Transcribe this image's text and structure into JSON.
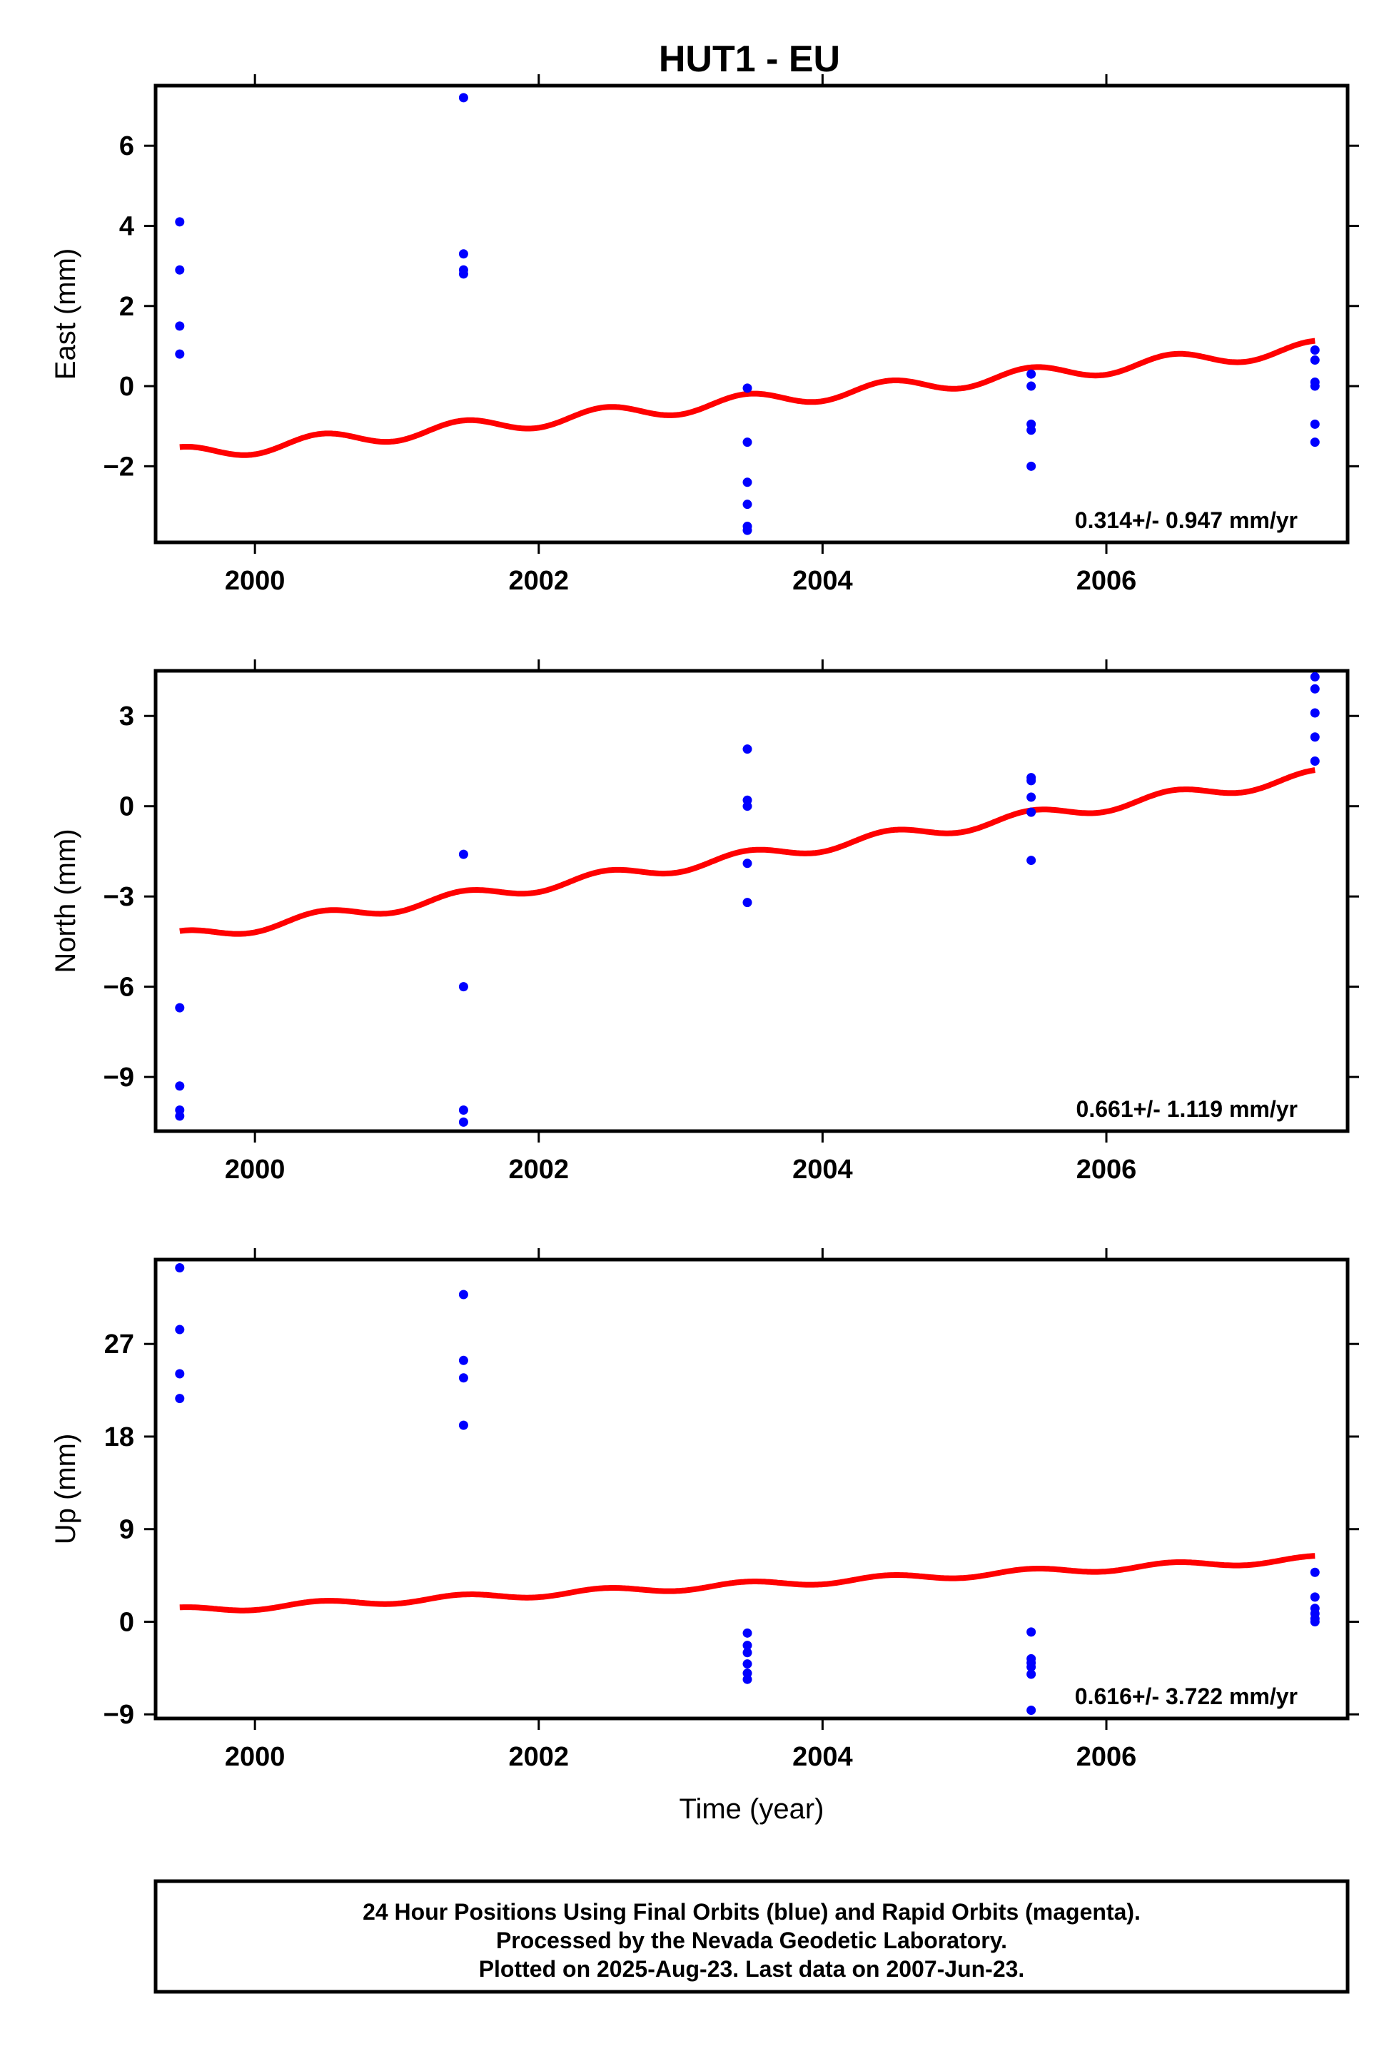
{
  "title": "HUT1 - EU",
  "colors": {
    "final_orbits": "#0000ff",
    "model": "#ff0000",
    "frame": "#000000",
    "background": "#ffffff"
  },
  "footer": {
    "line1": "24 Hour Positions Using Final Orbits (blue) and Rapid Orbits (magenta).",
    "line2": "Processed by the Nevada Geodetic Laboratory.",
    "line3": "Plotted on 2025-Aug-23. Last data on 2007-Jun-23."
  },
  "chart_data": [
    {
      "type": "scatter",
      "panel": "east",
      "ylabel": "East (mm)",
      "xlabel": "",
      "rate_label": "0.314+/- 0.947 mm/yr",
      "xlim": [
        1999.3,
        2007.7
      ],
      "ylim": [
        -3.9,
        7.5
      ],
      "xticks": [
        2000,
        2002,
        2004,
        2006
      ],
      "yticks": [
        -2,
        0,
        2,
        4,
        6
      ],
      "grid": false,
      "series": [
        {
          "marker": "dot",
          "points": [
            [
              1999.47,
              4.1
            ],
            [
              1999.47,
              2.9
            ],
            [
              1999.47,
              1.5
            ],
            [
              1999.47,
              0.8
            ],
            [
              2001.47,
              7.2
            ],
            [
              2001.47,
              3.3
            ],
            [
              2001.47,
              2.9
            ],
            [
              2001.47,
              2.8
            ],
            [
              2003.47,
              -0.05
            ],
            [
              2003.47,
              -1.4
            ],
            [
              2003.47,
              -2.4
            ],
            [
              2003.47,
              -2.95
            ],
            [
              2003.47,
              -3.5
            ],
            [
              2003.47,
              -3.6
            ],
            [
              2005.47,
              0.3
            ],
            [
              2005.47,
              0.0
            ],
            [
              2005.47,
              -0.95
            ],
            [
              2005.47,
              -1.1
            ],
            [
              2005.47,
              -2.0
            ],
            [
              2007.47,
              0.9
            ],
            [
              2007.47,
              0.65
            ],
            [
              2007.47,
              0.1
            ],
            [
              2007.47,
              0.0
            ],
            [
              2007.47,
              -0.95
            ],
            [
              2007.47,
              -1.4
            ]
          ]
        },
        {
          "line": "seasonal-model",
          "start": [
            1999.47,
            -1.7
          ],
          "end": [
            2007.47,
            0.95
          ],
          "amplitude": 0.18
        }
      ]
    },
    {
      "type": "scatter",
      "panel": "north",
      "ylabel": "North (mm)",
      "xlabel": "",
      "rate_label": "0.661+/- 1.119 mm/yr",
      "xlim": [
        1999.3,
        2007.7
      ],
      "ylim": [
        -10.8,
        4.5
      ],
      "xticks": [
        2000,
        2002,
        2004,
        2006
      ],
      "yticks": [
        -9,
        -6,
        -3,
        0,
        3
      ],
      "grid": false,
      "series": [
        {
          "marker": "dot",
          "points": [
            [
              1999.47,
              -6.7
            ],
            [
              1999.47,
              -9.3
            ],
            [
              1999.47,
              -10.1
            ],
            [
              1999.47,
              -10.3
            ],
            [
              2001.47,
              -1.6
            ],
            [
              2001.47,
              -6.0
            ],
            [
              2001.47,
              -10.1
            ],
            [
              2001.47,
              -10.5
            ],
            [
              2003.47,
              1.9
            ],
            [
              2003.47,
              0.2
            ],
            [
              2003.47,
              0.0
            ],
            [
              2003.47,
              -1.9
            ],
            [
              2003.47,
              -3.2
            ],
            [
              2005.47,
              0.95
            ],
            [
              2005.47,
              0.85
            ],
            [
              2005.47,
              0.3
            ],
            [
              2005.47,
              -0.2
            ],
            [
              2005.47,
              -1.8
            ],
            [
              2007.47,
              4.3
            ],
            [
              2007.47,
              3.9
            ],
            [
              2007.47,
              3.1
            ],
            [
              2007.47,
              2.3
            ],
            [
              2007.47,
              1.5
            ]
          ]
        },
        {
          "line": "seasonal-model",
          "start": [
            1999.47,
            -4.35
          ],
          "end": [
            2007.47,
            1.0
          ],
          "amplitude": 0.2
        }
      ]
    },
    {
      "type": "scatter",
      "panel": "up",
      "ylabel": "Up (mm)",
      "xlabel": "Time (year)",
      "rate_label": "0.616+/- 3.722 mm/yr",
      "xlim": [
        1999.3,
        2007.7
      ],
      "ylim": [
        -9.4,
        35.2
      ],
      "xticks": [
        2000,
        2002,
        2004,
        2006
      ],
      "yticks": [
        -9,
        0,
        9,
        18,
        27
      ],
      "grid": false,
      "series": [
        {
          "marker": "dot",
          "points": [
            [
              1999.47,
              34.4
            ],
            [
              1999.47,
              28.4
            ],
            [
              1999.47,
              24.1
            ],
            [
              1999.47,
              21.7
            ],
            [
              2001.47,
              31.8
            ],
            [
              2001.47,
              25.4
            ],
            [
              2001.47,
              23.7
            ],
            [
              2001.47,
              19.1
            ],
            [
              2003.47,
              -1.1
            ],
            [
              2003.47,
              -2.3
            ],
            [
              2003.47,
              -3.0
            ],
            [
              2003.47,
              -4.1
            ],
            [
              2003.47,
              -5.0
            ],
            [
              2003.47,
              -5.6
            ],
            [
              2005.47,
              -1.0
            ],
            [
              2005.47,
              -3.6
            ],
            [
              2005.47,
              -4.0
            ],
            [
              2005.47,
              -4.4
            ],
            [
              2005.47,
              -5.1
            ],
            [
              2005.47,
              -8.6
            ],
            [
              2007.47,
              4.8
            ],
            [
              2007.47,
              2.4
            ],
            [
              2007.47,
              1.3
            ],
            [
              2007.47,
              0.8
            ],
            [
              2007.47,
              0.3
            ],
            [
              2007.47,
              0.0
            ]
          ]
        },
        {
          "line": "seasonal-model",
          "start": [
            1999.47,
            1.1
          ],
          "end": [
            2007.47,
            6.1
          ],
          "amplitude": 0.3
        }
      ]
    }
  ]
}
